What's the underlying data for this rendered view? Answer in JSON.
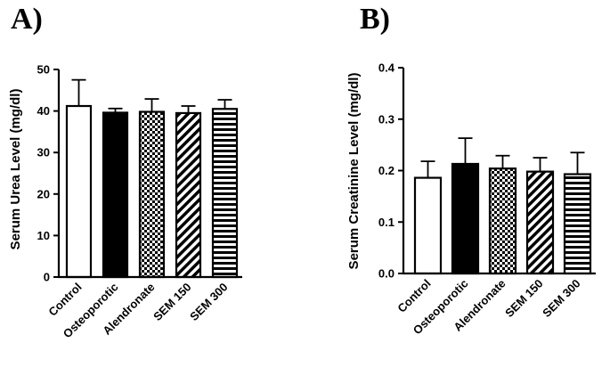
{
  "chart_data": [
    {
      "type": "bar",
      "panel_label": "A)",
      "ylabel": "Serum Urea Level (mg/dl)",
      "xlabel": "",
      "categories": [
        "Control",
        "Osteoporotic",
        "Alendronate",
        "SEM 150",
        "SEM 300"
      ],
      "values": [
        41.2,
        39.6,
        39.8,
        39.5,
        40.5
      ],
      "errors": [
        6.3,
        1.0,
        3.1,
        1.7,
        2.2
      ],
      "patterns": [
        "white",
        "solid-black",
        "checkerboard",
        "diagonal-stripes",
        "horizontal-stripes"
      ],
      "ylim": [
        0,
        50
      ],
      "yticks": [
        "0",
        "10",
        "20",
        "30",
        "40",
        "50"
      ],
      "ytick_values": [
        0,
        10,
        20,
        30,
        40,
        50
      ],
      "grid": false
    },
    {
      "type": "bar",
      "panel_label": "B)",
      "ylabel": "Serum Creatinine Level (mg/dl)",
      "xlabel": "",
      "categories": [
        "Control",
        "Osteoporotic",
        "Alendronate",
        "SEM 150",
        "SEM 300"
      ],
      "values": [
        0.186,
        0.213,
        0.204,
        0.198,
        0.193
      ],
      "errors": [
        0.032,
        0.05,
        0.025,
        0.027,
        0.042
      ],
      "patterns": [
        "white",
        "solid-black",
        "checkerboard",
        "diagonal-stripes",
        "horizontal-stripes"
      ],
      "ylim": [
        0,
        0.4
      ],
      "yticks": [
        "0.0",
        "0.1",
        "0.2",
        "0.3",
        "0.4"
      ],
      "ytick_values": [
        0,
        0.1,
        0.2,
        0.3,
        0.4
      ],
      "grid": false
    }
  ]
}
